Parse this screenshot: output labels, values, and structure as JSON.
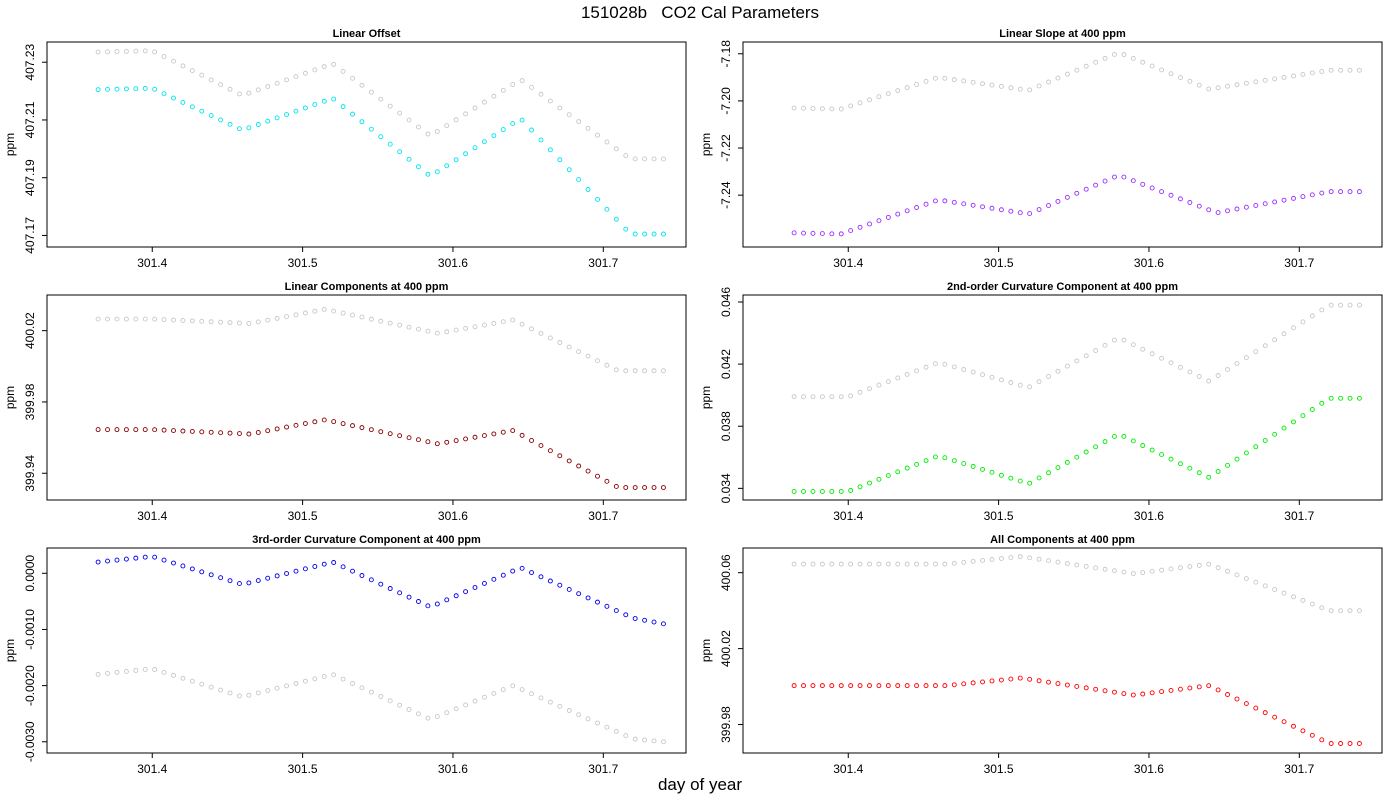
{
  "title": "151028b   CO2 Cal Parameters",
  "xlabel": "day of year",
  "x_ticks": [
    301.4,
    301.5,
    301.6,
    301.7
  ],
  "x_tick_labels": [
    "301.4",
    "301.5",
    "301.6",
    "301.7"
  ],
  "gray_color": "#c8c8c8",
  "chart_data": [
    {
      "type": "scatter",
      "title": "Linear Offset",
      "ylabel": "ppm",
      "xlim": [
        301.33,
        301.755
      ],
      "ylim": [
        407.166,
        407.237
      ],
      "yticks": [
        407.17,
        407.19,
        407.21,
        407.23
      ],
      "ytick_labels": [
        "407.17",
        "407.19",
        "407.21",
        "407.23"
      ],
      "series": [
        {
          "color": "#c8c8c8",
          "knots": [
            [
              301.364,
              407.2335
            ],
            [
              301.4,
              407.234
            ],
            [
              301.46,
              407.2185
            ],
            [
              301.52,
              407.2295
            ],
            [
              301.585,
              407.2045
            ],
            [
              301.645,
              407.224
            ],
            [
              301.718,
              407.1965
            ],
            [
              301.74,
              407.1965
            ]
          ]
        },
        {
          "color": "#00e5ee",
          "knots": [
            [
              301.364,
              407.2205
            ],
            [
              301.4,
              407.221
            ],
            [
              301.46,
              407.2065
            ],
            [
              301.52,
              407.2175
            ],
            [
              301.585,
              407.1905
            ],
            [
              301.645,
              407.2105
            ],
            [
              301.718,
              407.1705
            ],
            [
              301.74,
              407.1705
            ]
          ]
        }
      ]
    },
    {
      "type": "scatter",
      "title": "Linear Slope at 400 ppm",
      "ylabel": "ppm",
      "xlim": [
        301.33,
        301.755
      ],
      "ylim": [
        -7.262,
        -7.175
      ],
      "yticks": [
        -7.24,
        -7.22,
        -7.2,
        -7.18
      ],
      "ytick_labels": [
        "-7.24",
        "-7.22",
        "-7.20",
        "-7.18"
      ],
      "series": [
        {
          "color": "#c8c8c8",
          "knots": [
            [
              301.364,
              -7.203
            ],
            [
              301.395,
              -7.2035
            ],
            [
              301.46,
              -7.19
            ],
            [
              301.52,
              -7.1955
            ],
            [
              301.58,
              -7.1795
            ],
            [
              301.64,
              -7.195
            ],
            [
              301.72,
              -7.187
            ],
            [
              301.74,
              -7.187
            ]
          ]
        },
        {
          "color": "#9b30ff",
          "knots": [
            [
              301.364,
              -7.256
            ],
            [
              301.395,
              -7.2565
            ],
            [
              301.46,
              -7.242
            ],
            [
              301.52,
              -7.248
            ],
            [
              301.58,
              -7.2315
            ],
            [
              301.645,
              -7.2475
            ],
            [
              301.72,
              -7.2385
            ],
            [
              301.74,
              -7.2385
            ]
          ]
        }
      ]
    },
    {
      "type": "scatter",
      "title": "Linear Components at 400 ppm",
      "ylabel": "ppm",
      "xlim": [
        301.33,
        301.755
      ],
      "ylim": [
        399.925,
        400.04
      ],
      "yticks": [
        399.94,
        399.98,
        400.02
      ],
      "ytick_labels": [
        "399.94",
        "399.98",
        "400.02"
      ],
      "series": [
        {
          "color": "#c8c8c8",
          "knots": [
            [
              301.364,
              400.0265
            ],
            [
              301.4,
              400.0265
            ],
            [
              301.465,
              400.024
            ],
            [
              301.515,
              400.032
            ],
            [
              301.59,
              400.0185
            ],
            [
              301.64,
              400.026
            ],
            [
              301.71,
              399.9975
            ],
            [
              301.74,
              399.9975
            ]
          ]
        },
        {
          "color": "#8b0000",
          "knots": [
            [
              301.364,
              399.9645
            ],
            [
              301.4,
              399.9645
            ],
            [
              301.465,
              399.962
            ],
            [
              301.515,
              399.97
            ],
            [
              301.59,
              399.9565
            ],
            [
              301.64,
              399.964
            ],
            [
              301.71,
              399.932
            ],
            [
              301.74,
              399.932
            ]
          ]
        }
      ]
    },
    {
      "type": "scatter",
      "title": "2nd-order Curvature Component at 400 ppm",
      "ylabel": "ppm",
      "xlim": [
        301.33,
        301.755
      ],
      "ylim": [
        0.03325,
        0.04645
      ],
      "yticks": [
        0.034,
        0.038,
        0.042,
        0.046
      ],
      "ytick_labels": [
        "0.034",
        "0.038",
        "0.042",
        "0.046"
      ],
      "series": [
        {
          "color": "#c8c8c8",
          "knots": [
            [
              301.364,
              0.0399
            ],
            [
              301.4,
              0.0399
            ],
            [
              301.46,
              0.0421
            ],
            [
              301.52,
              0.0405
            ],
            [
              301.58,
              0.0437
            ],
            [
              301.64,
              0.0409
            ],
            [
              301.72,
              0.0458
            ],
            [
              301.74,
              0.0458
            ]
          ]
        },
        {
          "color": "#00ee00",
          "knots": [
            [
              301.364,
              0.0338
            ],
            [
              301.4,
              0.0338
            ],
            [
              301.46,
              0.0361
            ],
            [
              301.52,
              0.0343
            ],
            [
              301.58,
              0.0375
            ],
            [
              301.64,
              0.0347
            ],
            [
              301.72,
              0.0398
            ],
            [
              301.74,
              0.0398
            ]
          ]
        }
      ]
    },
    {
      "type": "scatter",
      "title": "3rd-order Curvature Component at 400 ppm",
      "ylabel": "ppm",
      "xlim": [
        301.33,
        301.755
      ],
      "ylim": [
        -0.0032,
        0.00045
      ],
      "yticks": [
        -0.003,
        -0.002,
        -0.001,
        0
      ],
      "ytick_labels": [
        "-0.0030",
        "-0.0020",
        "-0.0010",
        "0.0000"
      ],
      "series": [
        {
          "color": "#c8c8c8",
          "knots": [
            [
              301.364,
              -0.0018
            ],
            [
              301.4,
              -0.0017
            ],
            [
              301.46,
              -0.0022
            ],
            [
              301.52,
              -0.0018
            ],
            [
              301.585,
              -0.0026
            ],
            [
              301.64,
              -0.002
            ],
            [
              301.72,
              -0.00295
            ],
            [
              301.74,
              -0.003
            ]
          ]
        },
        {
          "color": "#0000ee",
          "knots": [
            [
              301.364,
              0.0002
            ],
            [
              301.4,
              0.0003
            ],
            [
              301.46,
              -0.0002
            ],
            [
              301.52,
              0.0002
            ],
            [
              301.585,
              -0.0006
            ],
            [
              301.645,
              0.0001
            ],
            [
              301.72,
              -0.0008
            ],
            [
              301.74,
              -0.0009
            ]
          ]
        }
      ]
    },
    {
      "type": "scatter",
      "title": "All Components at 400 ppm",
      "ylabel": "ppm",
      "xlim": [
        301.33,
        301.755
      ],
      "ylim": [
        399.965,
        400.073
      ],
      "yticks": [
        399.98,
        400.02,
        400.06
      ],
      "ytick_labels": [
        "399.98",
        "400.02",
        "400.06"
      ],
      "series": [
        {
          "color": "#c8c8c8",
          "knots": [
            [
              301.364,
              400.0645
            ],
            [
              301.465,
              400.0645
            ],
            [
              301.515,
              400.0685
            ],
            [
              301.59,
              400.0595
            ],
            [
              301.64,
              400.0645
            ],
            [
              301.72,
              400.04
            ],
            [
              301.74,
              400.04
            ]
          ]
        },
        {
          "color": "#ff0000",
          "knots": [
            [
              301.364,
              400.0005
            ],
            [
              301.465,
              400.0005
            ],
            [
              301.515,
              400.0045
            ],
            [
              301.59,
              399.9955
            ],
            [
              301.64,
              400.0005
            ],
            [
              301.72,
              399.97
            ],
            [
              301.74,
              399.97
            ]
          ]
        }
      ]
    }
  ]
}
